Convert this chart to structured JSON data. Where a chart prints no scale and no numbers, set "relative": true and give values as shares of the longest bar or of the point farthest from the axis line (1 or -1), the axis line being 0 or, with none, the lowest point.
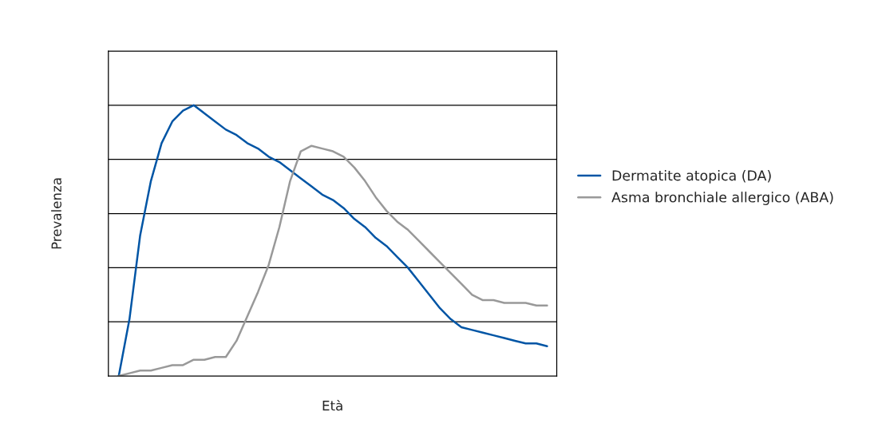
{
  "chart_data": {
    "type": "line",
    "relative": true,
    "xlabel": "Età",
    "ylabel": "Prevalenza",
    "grid": "y",
    "legend": "right",
    "tick_labels": false,
    "categories": [
      null,
      null,
      null,
      null,
      null,
      null,
      null,
      null,
      null,
      null,
      null,
      null,
      null,
      null,
      null,
      null,
      null,
      null,
      null,
      null,
      null,
      null,
      null,
      null,
      null,
      null,
      null,
      null,
      null,
      null,
      null,
      null,
      null,
      null,
      null,
      null,
      null,
      null,
      null,
      null,
      null
    ],
    "series": [
      {
        "name": "Dermatite atopica (DA)",
        "color": "#0055a5",
        "values": [
          0,
          0.21,
          0.52,
          0.72,
          0.86,
          0.94,
          0.98,
          1.0,
          0.97,
          0.94,
          0.91,
          0.89,
          0.86,
          0.84,
          0.81,
          0.79,
          0.76,
          0.73,
          0.7,
          0.67,
          0.65,
          0.62,
          0.58,
          0.55,
          0.51,
          0.48,
          0.44,
          0.4,
          0.35,
          0.3,
          0.25,
          0.21,
          0.18,
          0.17,
          0.16,
          0.15,
          0.14,
          0.13,
          0.12,
          0.12,
          0.11
        ]
      },
      {
        "name": "Asma bronchiale allergico (ABA)",
        "color": "#999999",
        "values": [
          0,
          0.01,
          0.02,
          0.02,
          0.03,
          0.04,
          0.04,
          0.06,
          0.06,
          0.07,
          0.07,
          0.13,
          0.22,
          0.31,
          0.41,
          0.55,
          0.72,
          0.83,
          0.85,
          0.84,
          0.83,
          0.81,
          0.77,
          0.72,
          0.66,
          0.61,
          0.57,
          0.54,
          0.5,
          0.46,
          0.42,
          0.38,
          0.34,
          0.3,
          0.28,
          0.28,
          0.27,
          0.27,
          0.27,
          0.26,
          0.26
        ]
      }
    ]
  }
}
